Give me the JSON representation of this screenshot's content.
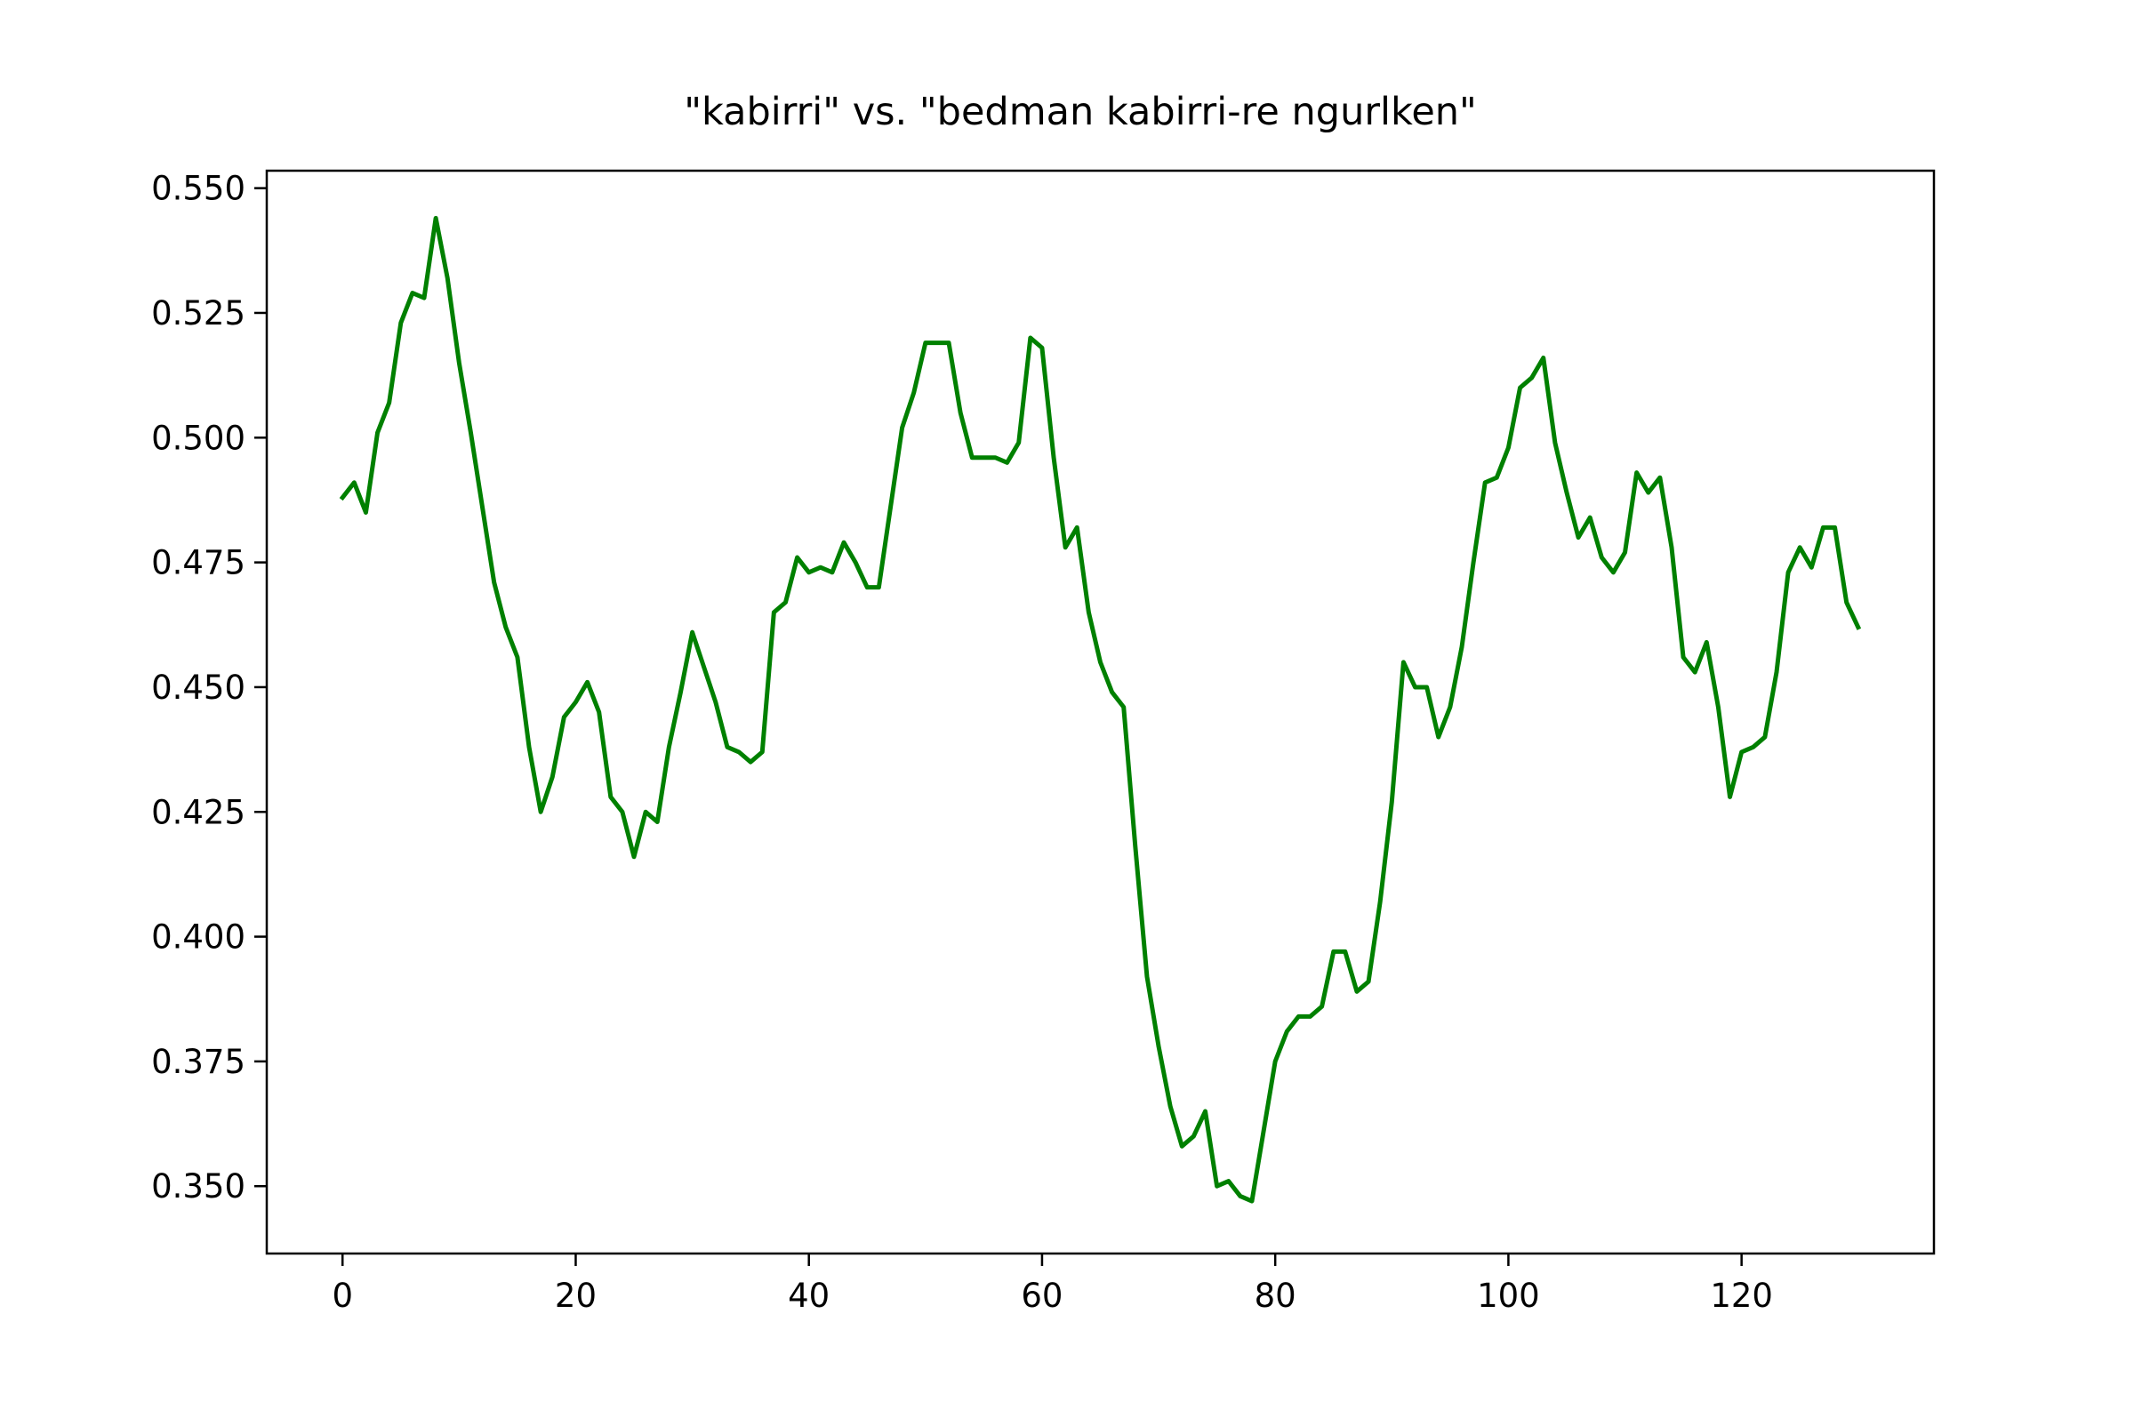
{
  "chart_data": {
    "type": "line",
    "title": "\"kabirri\" vs. \"bedman kabirri-re ngurlken\"",
    "xlabel": "",
    "ylabel": "",
    "xlim": [
      -6.5,
      136.5
    ],
    "ylim": [
      0.3365,
      0.5535
    ],
    "x_ticks": [
      0,
      20,
      40,
      60,
      80,
      100,
      120
    ],
    "x_tick_labels": [
      "0",
      "20",
      "40",
      "60",
      "80",
      "100",
      "120"
    ],
    "y_ticks": [
      0.35,
      0.375,
      0.4,
      0.425,
      0.45,
      0.475,
      0.5,
      0.525,
      0.55
    ],
    "y_tick_labels": [
      "0.350",
      "0.375",
      "0.400",
      "0.425",
      "0.450",
      "0.475",
      "0.500",
      "0.525",
      "0.550"
    ],
    "grid": false,
    "legend": "none",
    "series": [
      {
        "color": "#008000",
        "x": [
          0,
          1,
          2,
          3,
          4,
          5,
          6,
          7,
          8,
          9,
          10,
          11,
          12,
          13,
          14,
          15,
          16,
          17,
          18,
          19,
          20,
          21,
          22,
          23,
          24,
          25,
          26,
          27,
          28,
          29,
          30,
          31,
          32,
          33,
          34,
          35,
          36,
          37,
          38,
          39,
          40,
          41,
          42,
          43,
          44,
          45,
          46,
          47,
          48,
          49,
          50,
          51,
          52,
          53,
          54,
          55,
          56,
          57,
          58,
          59,
          60,
          61,
          62,
          63,
          64,
          65,
          66,
          67,
          68,
          69,
          70,
          71,
          72,
          73,
          74,
          75,
          76,
          77,
          78,
          79,
          80,
          81,
          82,
          83,
          84,
          85,
          86,
          87,
          88,
          89,
          90,
          91,
          92,
          93,
          94,
          95,
          96,
          97,
          98,
          99,
          100,
          101,
          102,
          103,
          104,
          105,
          106,
          107,
          108,
          109,
          110,
          111,
          112,
          113,
          114,
          115,
          116,
          117,
          118,
          119,
          120,
          121,
          122,
          123,
          124,
          125,
          126,
          127,
          128,
          129,
          130
        ],
        "y": [
          0.488,
          0.491,
          0.485,
          0.501,
          0.507,
          0.523,
          0.529,
          0.528,
          0.544,
          0.532,
          0.515,
          0.501,
          0.486,
          0.471,
          0.462,
          0.456,
          0.438,
          0.425,
          0.432,
          0.444,
          0.447,
          0.451,
          0.445,
          0.428,
          0.425,
          0.416,
          0.425,
          0.423,
          0.438,
          0.449,
          0.461,
          0.454,
          0.447,
          0.438,
          0.437,
          0.435,
          0.437,
          0.465,
          0.467,
          0.476,
          0.473,
          0.474,
          0.473,
          0.479,
          0.475,
          0.47,
          0.47,
          0.486,
          0.502,
          0.509,
          0.519,
          0.519,
          0.519,
          0.505,
          0.496,
          0.496,
          0.496,
          0.495,
          0.499,
          0.52,
          0.518,
          0.496,
          0.478,
          0.482,
          0.465,
          0.455,
          0.449,
          0.446,
          0.418,
          0.392,
          0.378,
          0.366,
          0.358,
          0.36,
          0.365,
          0.35,
          0.351,
          0.348,
          0.347,
          0.361,
          0.375,
          0.381,
          0.384,
          0.384,
          0.386,
          0.397,
          0.397,
          0.389,
          0.391,
          0.407,
          0.427,
          0.455,
          0.45,
          0.45,
          0.44,
          0.446,
          0.458,
          0.475,
          0.491,
          0.492,
          0.498,
          0.51,
          0.512,
          0.516,
          0.499,
          0.489,
          0.48,
          0.484,
          0.476,
          0.473,
          0.477,
          0.493,
          0.489,
          0.492,
          0.478,
          0.456,
          0.453,
          0.459,
          0.446,
          0.428,
          0.437,
          0.438,
          0.44,
          0.453,
          0.473,
          0.478,
          0.474,
          0.482,
          0.482,
          0.467,
          0.462
        ]
      }
    ]
  }
}
